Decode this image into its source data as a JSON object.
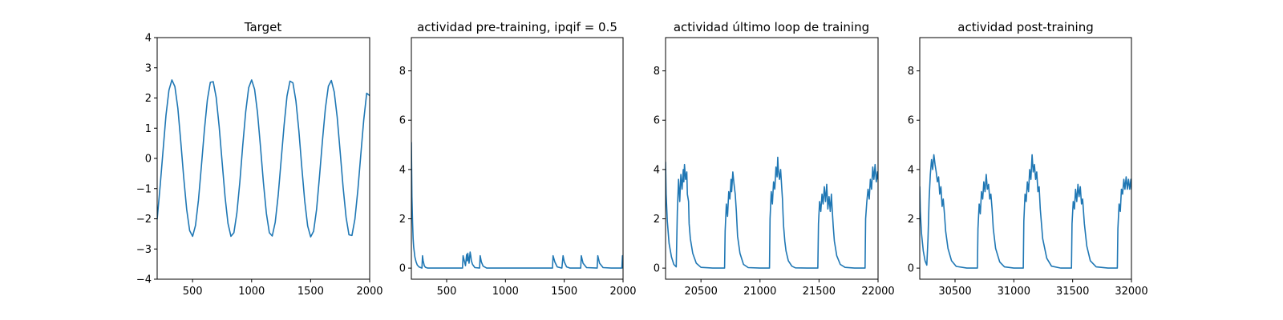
{
  "colors": {
    "series": "#1f77b4",
    "axes": "#000000",
    "background": "#ffffff"
  },
  "chart_data": [
    {
      "type": "line",
      "title": "Target",
      "xlim": [
        200,
        2000
      ],
      "ylim": [
        -4,
        4
      ],
      "xticks": [
        500,
        1000,
        1500,
        2000
      ],
      "yticks": [
        -4,
        -3,
        -2,
        -1,
        0,
        1,
        2,
        3,
        4
      ],
      "ytick_labels": [
        "−4",
        "−3",
        "−2",
        "−1",
        "0",
        "1",
        "2",
        "3",
        "4"
      ],
      "series": [
        {
          "x": [
            200,
            225,
            250,
            275,
            300,
            325,
            350,
            375,
            400,
            425,
            450,
            475,
            500,
            525,
            550,
            575,
            600,
            625,
            650,
            675,
            700,
            725,
            750,
            775,
            800,
            825,
            850,
            875,
            900,
            925,
            950,
            975,
            1000,
            1025,
            1050,
            1075,
            1100,
            1125,
            1150,
            1175,
            1200,
            1225,
            1250,
            1275,
            1300,
            1325,
            1350,
            1375,
            1400,
            1425,
            1450,
            1475,
            1500,
            1525,
            1550,
            1575,
            1600,
            1625,
            1650,
            1675,
            1700,
            1725,
            1750,
            1775,
            1800,
            1825,
            1850,
            1875,
            1900,
            1925,
            1950,
            1975,
            2000
          ],
          "y": [
            -2.01,
            -0.92,
            0.28,
            1.43,
            2.26,
            2.6,
            2.38,
            1.66,
            0.57,
            -0.63,
            -1.69,
            -2.39,
            -2.58,
            -2.22,
            -1.38,
            -0.24,
            0.94,
            1.94,
            2.52,
            2.54,
            2.02,
            1.06,
            -0.12,
            -1.28,
            -2.15,
            -2.58,
            -2.46,
            -1.81,
            -0.78,
            0.42,
            1.54,
            2.34,
            2.6,
            2.29,
            1.52,
            0.4,
            -0.8,
            -1.82,
            -2.46,
            -2.57,
            -2.12,
            -1.23,
            -0.06,
            1.1,
            2.06,
            2.56,
            2.5,
            1.91,
            0.92,
            -0.27,
            -1.41,
            -2.24,
            -2.6,
            -2.41,
            -1.69,
            -0.61,
            0.58,
            1.66,
            2.39,
            2.58,
            2.2,
            1.37,
            0.22,
            -0.96,
            -1.95,
            -2.53,
            -2.55,
            -2.01,
            -1.04,
            0.14,
            1.27,
            2.16,
            2.08
          ]
        }
      ]
    },
    {
      "type": "line",
      "title": "actividad pre-training, ipqif = 0.5",
      "xlim": [
        200,
        2000
      ],
      "ylim": [
        -0.45,
        9.35
      ],
      "xticks": [
        500,
        1000,
        1500,
        2000
      ],
      "yticks": [
        0,
        2,
        4,
        6,
        8
      ],
      "ytick_labels": [
        "0",
        "2",
        "4",
        "6",
        "8"
      ],
      "series": [
        {
          "x": [
            200,
            205,
            210,
            215,
            220,
            230,
            240,
            250,
            265,
            280,
            290,
            295,
            300,
            310,
            320,
            340,
            400,
            500,
            600,
            635,
            640,
            650,
            660,
            670,
            675,
            680,
            690,
            700,
            705,
            710,
            720,
            740,
            780,
            785,
            795,
            810,
            840,
            900,
            1000,
            1100,
            1200,
            1300,
            1400,
            1405,
            1420,
            1440,
            1480,
            1490,
            1500,
            1520,
            1550,
            1600,
            1640,
            1645,
            1660,
            1690,
            1780,
            1785,
            1800,
            1830,
            1900,
            1990,
            1995,
            2000
          ],
          "y": [
            5.1,
            2.9,
            1.85,
            1.2,
            0.85,
            0.45,
            0.25,
            0.13,
            0.05,
            0.02,
            0.0,
            0.5,
            0.3,
            0.1,
            0.03,
            0.0,
            0.0,
            0.0,
            0.0,
            0.0,
            0.5,
            0.3,
            0.1,
            0.55,
            0.3,
            0.6,
            0.2,
            0.65,
            0.5,
            0.3,
            0.15,
            0.02,
            0.0,
            0.5,
            0.25,
            0.08,
            0.0,
            0.0,
            0.0,
            0.0,
            0.0,
            0.0,
            0.0,
            0.5,
            0.25,
            0.05,
            0.0,
            0.5,
            0.25,
            0.05,
            0.0,
            0.0,
            0.0,
            0.5,
            0.2,
            0.02,
            0.0,
            0.5,
            0.2,
            0.02,
            0.0,
            0.0,
            0.5,
            0.0
          ]
        }
      ]
    },
    {
      "type": "line",
      "title": "actividad último loop de training",
      "xlim": [
        20200,
        22000
      ],
      "ylim": [
        -0.45,
        9.35
      ],
      "xticks": [
        20500,
        21000,
        21500,
        22000
      ],
      "yticks": [
        0,
        2,
        4,
        6,
        8
      ],
      "ytick_labels": [
        "0",
        "2",
        "4",
        "6",
        "8"
      ],
      "series": [
        {
          "x": [
            20200,
            20205,
            20215,
            20230,
            20250,
            20270,
            20290,
            20300,
            20310,
            20320,
            20330,
            20340,
            20350,
            20355,
            20360,
            20370,
            20380,
            20385,
            20395,
            20400,
            20410,
            20430,
            20460,
            20500,
            20600,
            20680,
            20700,
            20705,
            20715,
            20725,
            20735,
            20745,
            20755,
            20760,
            20770,
            20780,
            20790,
            20800,
            20810,
            20830,
            20860,
            20900,
            21000,
            21080,
            21085,
            21095,
            21105,
            21115,
            21125,
            21135,
            21145,
            21150,
            21155,
            21165,
            21175,
            21185,
            21190,
            21195,
            21200,
            21210,
            21220,
            21240,
            21270,
            21300,
            21400,
            21490,
            21495,
            21505,
            21515,
            21525,
            21535,
            21545,
            21555,
            21565,
            21575,
            21585,
            21595,
            21605,
            21610,
            21620,
            21630,
            21650,
            21680,
            21720,
            21800,
            21890,
            21895,
            21905,
            21915,
            21925,
            21935,
            21945,
            21955,
            21965,
            21975,
            21985,
            21995,
            22000
          ],
          "y": [
            4.3,
            3.0,
            1.9,
            1.0,
            0.45,
            0.15,
            0.05,
            2.3,
            3.6,
            2.7,
            3.8,
            3.2,
            4.0,
            3.5,
            4.2,
            3.6,
            3.9,
            3.0,
            2.7,
            1.8,
            1.2,
            0.6,
            0.2,
            0.03,
            0.0,
            0.0,
            0.0,
            1.5,
            2.6,
            2.1,
            3.1,
            2.8,
            3.6,
            3.1,
            3.9,
            3.4,
            3.0,
            2.3,
            1.3,
            0.6,
            0.15,
            0.02,
            0.0,
            0.0,
            2.0,
            3.1,
            2.6,
            3.5,
            3.2,
            4.1,
            3.7,
            4.5,
            4.0,
            3.6,
            4.0,
            3.2,
            2.8,
            2.2,
            1.7,
            1.1,
            0.7,
            0.3,
            0.08,
            0.01,
            0.0,
            0.0,
            1.8,
            2.7,
            2.3,
            3.0,
            2.6,
            3.3,
            2.7,
            3.4,
            2.4,
            2.9,
            2.3,
            3.0,
            2.5,
            1.7,
            1.1,
            0.5,
            0.15,
            0.03,
            0.0,
            0.0,
            2.0,
            2.7,
            3.2,
            2.8,
            3.6,
            3.2,
            4.1,
            3.6,
            4.2,
            3.5,
            3.9,
            3.6
          ]
        }
      ]
    },
    {
      "type": "line",
      "title": "actividad post-training",
      "xlim": [
        30200,
        32000
      ],
      "ylim": [
        -0.45,
        9.35
      ],
      "xticks": [
        30500,
        31000,
        31500,
        32000
      ],
      "yticks": [
        0,
        2,
        4,
        6,
        8
      ],
      "ytick_labels": [
        "0",
        "2",
        "4",
        "6",
        "8"
      ],
      "series": [
        {
          "x": [
            30200,
            30205,
            30215,
            30230,
            30245,
            30260,
            30270,
            30280,
            30290,
            30300,
            30310,
            30320,
            30330,
            30340,
            30350,
            30360,
            30370,
            30380,
            30390,
            30400,
            30410,
            30420,
            30440,
            30470,
            30510,
            30600,
            30690,
            30695,
            30705,
            30715,
            30725,
            30735,
            30745,
            30755,
            30765,
            30775,
            30785,
            30795,
            30805,
            30815,
            30825,
            30845,
            30880,
            30920,
            31000,
            31080,
            31085,
            31095,
            31105,
            31115,
            31125,
            31135,
            31145,
            31155,
            31165,
            31175,
            31185,
            31195,
            31205,
            31215,
            31225,
            31245,
            31280,
            31320,
            31400,
            31490,
            31495,
            31505,
            31515,
            31525,
            31535,
            31545,
            31555,
            31565,
            31575,
            31585,
            31600,
            31620,
            31650,
            31700,
            31800,
            31880,
            31885,
            31895,
            31905,
            31915,
            31925,
            31935,
            31945,
            31955,
            31965,
            31975,
            31985,
            31995,
            32000
          ],
          "y": [
            3.3,
            2.3,
            1.4,
            0.7,
            0.3,
            0.12,
            1.2,
            2.8,
            3.8,
            4.4,
            4.0,
            4.6,
            4.2,
            3.9,
            3.5,
            3.7,
            3.0,
            3.3,
            2.5,
            2.8,
            2.2,
            1.5,
            0.8,
            0.3,
            0.07,
            0.0,
            0.0,
            1.6,
            2.6,
            2.2,
            3.1,
            2.8,
            3.5,
            3.1,
            3.8,
            3.2,
            3.4,
            2.8,
            3.0,
            2.4,
            1.6,
            0.8,
            0.25,
            0.05,
            0.0,
            0.0,
            1.9,
            3.0,
            2.7,
            3.5,
            3.1,
            4.0,
            3.6,
            4.6,
            3.9,
            4.2,
            3.6,
            3.9,
            3.1,
            3.3,
            2.4,
            1.2,
            0.4,
            0.08,
            0.0,
            0.0,
            1.8,
            2.7,
            2.4,
            3.2,
            2.7,
            3.4,
            2.9,
            3.3,
            2.6,
            2.8,
            1.8,
            0.9,
            0.3,
            0.05,
            0.0,
            0.0,
            1.6,
            2.6,
            2.3,
            3.2,
            3.0,
            3.6,
            3.2,
            3.7,
            3.2,
            3.6,
            3.2,
            3.6,
            3.2
          ]
        }
      ]
    }
  ]
}
